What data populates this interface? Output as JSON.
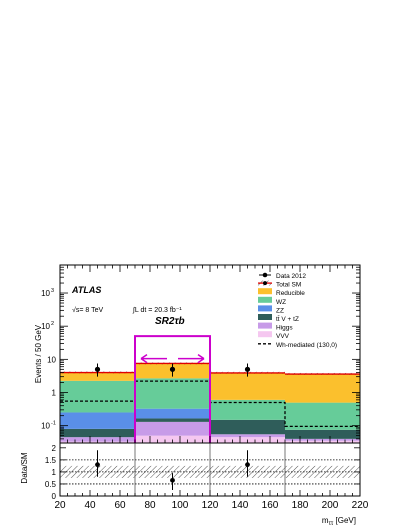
{
  "chart_data": {
    "type": "bar",
    "stacked": true,
    "experiment": "ATLAS",
    "energy_label": "√s= 8 TeV",
    "lumi_label": "∫L dt = 20.3 fb⁻¹",
    "region_label": "SR2τb",
    "ylabel": "Events / 50 GeV",
    "xlabel": "m_ττ [GeV]",
    "ratio_ylabel": "Data/SM",
    "xlim": [
      20,
      220
    ],
    "ylim_log": [
      0.03,
      7000
    ],
    "y_scale": "log",
    "x_ticks": [
      "20",
      "40",
      "60",
      "80",
      "100",
      "120",
      "140",
      "160",
      "180",
      "200",
      "220"
    ],
    "y_ticks": [
      {
        "value": 0.1,
        "base": "10",
        "exp": "-1"
      },
      {
        "value": 1,
        "base": "1",
        "exp": ""
      },
      {
        "value": 10,
        "base": "10",
        "exp": ""
      },
      {
        "value": 100,
        "base": "10",
        "exp": "2"
      },
      {
        "value": 1000,
        "base": "10",
        "exp": "3"
      }
    ],
    "bins": [
      [
        20,
        70
      ],
      [
        70,
        120
      ],
      [
        120,
        170
      ],
      [
        170,
        220
      ]
    ],
    "stack": [
      {
        "name": "VVV",
        "color": "#f5c7f0",
        "values": [
          0.033,
          0.05,
          0.045,
          0.035
        ]
      },
      {
        "name": "Higgs",
        "color": "#c79be8",
        "values": [
          0.012,
          0.08,
          0.01,
          0.005
        ]
      },
      {
        "name": "tt̄ V + tZ",
        "color": "#2f5d5a",
        "values": [
          0.035,
          0.035,
          0.095,
          0.035
        ]
      },
      {
        "name": "ZZ",
        "color": "#5a8fe8",
        "values": [
          0.17,
          0.16,
          0.0,
          0.0
        ]
      },
      {
        "name": "WZ",
        "color": "#66cc99",
        "values": [
          2.0,
          2.35,
          0.45,
          0.42
        ]
      },
      {
        "name": "Reducible",
        "color": "#fbc02d",
        "values": [
          1.75,
          4.8,
          3.3,
          3.05
        ]
      }
    ],
    "total_sm": [
      4.0,
      7.5,
      3.9,
      3.6
    ],
    "signal": {
      "name": "Wh-mediated (130,0)",
      "values": [
        0.55,
        2.2,
        0.5,
        0.095
      ]
    },
    "data": {
      "name": "Data 2012",
      "x": [
        45,
        95,
        145
      ],
      "y": [
        5,
        5,
        5
      ],
      "err": [
        [
          3,
          7.5
        ],
        [
          3,
          7.5
        ],
        [
          3,
          7.5
        ]
      ]
    },
    "total_sm_label": "Total SM",
    "signal_region_box": [
      70,
      120
    ],
    "ratio": {
      "ylim": [
        0,
        2.2
      ],
      "ticks": [
        "0",
        "0.5",
        "1",
        "1.5",
        "2"
      ],
      "values": [
        1.3,
        0.65,
        1.3
      ],
      "x": [
        45,
        95,
        145
      ],
      "errors": [
        [
          0.8,
          1.9
        ],
        [
          0.25,
          0.95
        ],
        [
          0.8,
          1.9
        ]
      ],
      "band": [
        0.75,
        1.25
      ],
      "gridlines": [
        0.5,
        1,
        1.5
      ]
    },
    "legend_position": "top-right"
  }
}
